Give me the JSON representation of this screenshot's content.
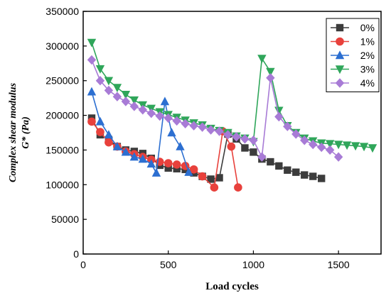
{
  "chart_data": {
    "type": "line",
    "xlabel": "Load cycles",
    "ylabel_line1": "Complex shear modulus",
    "ylabel_line2": "G* (Pa)",
    "xlim": [
      0,
      1750
    ],
    "ylim": [
      0,
      350000
    ],
    "x_ticks": [
      0,
      500,
      1000,
      1500
    ],
    "y_ticks": [
      0,
      50000,
      100000,
      150000,
      200000,
      250000,
      300000,
      350000
    ],
    "grid": false,
    "legend_position": "top-right",
    "series": [
      {
        "name": "0%",
        "color": "#3c3c3c",
        "marker": "square",
        "x": [
          50,
          100,
          150,
          200,
          250,
          300,
          350,
          400,
          450,
          500,
          550,
          600,
          650,
          700,
          750,
          800,
          850,
          900,
          950,
          1000,
          1050,
          1100,
          1150,
          1200,
          1250,
          1300,
          1350,
          1400
        ],
        "y": [
          196000,
          172000,
          165000,
          155000,
          150000,
          148000,
          145000,
          138000,
          128000,
          124000,
          123000,
          122000,
          117000,
          112000,
          108000,
          110000,
          173000,
          166000,
          153000,
          147000,
          137000,
          133000,
          127000,
          121000,
          118000,
          114000,
          112000,
          109000
        ]
      },
      {
        "name": "1%",
        "color": "#e8413c",
        "marker": "circle",
        "x": [
          50,
          100,
          150,
          200,
          250,
          300,
          350,
          400,
          450,
          500,
          550,
          600,
          650,
          700,
          770,
          820,
          870,
          910
        ],
        "y": [
          191000,
          176000,
          161000,
          155000,
          148000,
          144000,
          140000,
          136000,
          133000,
          131000,
          129000,
          127000,
          122000,
          112000,
          96000,
          177000,
          155000,
          96000
        ]
      },
      {
        "name": "2%",
        "color": "#2c6fd1",
        "marker": "triangle-up",
        "x": [
          50,
          100,
          150,
          200,
          250,
          300,
          350,
          400,
          430,
          480,
          520,
          570,
          620
        ],
        "y": [
          234000,
          191000,
          172000,
          155000,
          147000,
          140000,
          137000,
          130000,
          117000,
          220000,
          175000,
          155000,
          118000
        ]
      },
      {
        "name": "3%",
        "color": "#2fa65a",
        "marker": "triangle-down",
        "x": [
          50,
          100,
          150,
          200,
          250,
          300,
          350,
          400,
          450,
          500,
          550,
          600,
          650,
          700,
          750,
          800,
          850,
          900,
          950,
          1000,
          1050,
          1100,
          1150,
          1200,
          1250,
          1300,
          1350,
          1400,
          1450,
          1500,
          1550,
          1600,
          1650,
          1700
        ],
        "y": [
          305000,
          267000,
          250000,
          240000,
          230000,
          222000,
          215000,
          210000,
          205000,
          201000,
          197000,
          193000,
          189000,
          186000,
          181000,
          178000,
          175000,
          170000,
          167000,
          162000,
          282000,
          263000,
          207000,
          185000,
          175000,
          167000,
          163000,
          160000,
          159000,
          158000,
          157000,
          156000,
          155000,
          153000
        ]
      },
      {
        "name": "4%",
        "color": "#a87bd6",
        "marker": "diamond",
        "x": [
          50,
          100,
          150,
          200,
          250,
          300,
          350,
          400,
          450,
          500,
          550,
          600,
          650,
          700,
          750,
          800,
          850,
          900,
          950,
          1000,
          1050,
          1100,
          1150,
          1200,
          1250,
          1300,
          1350,
          1400,
          1450,
          1500
        ],
        "y": [
          280000,
          250000,
          236000,
          227000,
          220000,
          213000,
          208000,
          203000,
          199000,
          196000,
          192000,
          188000,
          185000,
          183000,
          179000,
          177000,
          172000,
          169000,
          166000,
          164000,
          140000,
          254000,
          198000,
          184000,
          173000,
          164000,
          158000,
          154000,
          150000,
          140000
        ]
      }
    ]
  }
}
